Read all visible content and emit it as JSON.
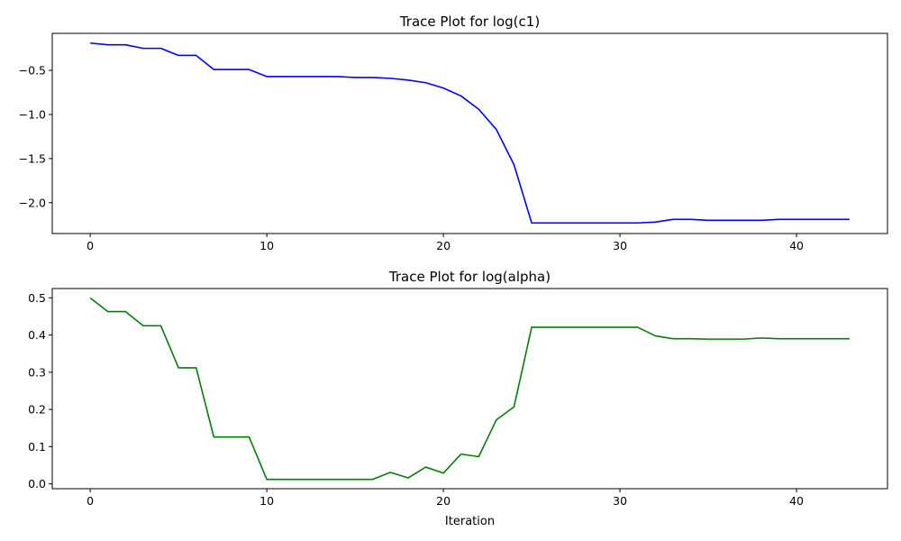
{
  "chart_data": [
    {
      "type": "line",
      "title": "Trace Plot for log(c1)",
      "xlabel": "",
      "ylabel": "",
      "xlim": [
        -2.15,
        45.15
      ],
      "ylim": [
        -2.35,
        -0.08
      ],
      "xticks": [
        0,
        10,
        20,
        30,
        40
      ],
      "xtick_labels": [
        "0",
        "10",
        "20",
        "30",
        "40"
      ],
      "yticks": [
        -2.0,
        -1.5,
        -1.0,
        -0.5
      ],
      "ytick_labels": [
        "−2.0",
        "−1.5",
        "−1.0",
        "−0.5"
      ],
      "grid": false,
      "color": "#0000ff",
      "x": [
        0,
        1,
        2,
        3,
        4,
        5,
        6,
        7,
        8,
        9,
        10,
        11,
        12,
        13,
        14,
        15,
        16,
        17,
        18,
        19,
        20,
        21,
        22,
        23,
        24,
        25,
        26,
        27,
        28,
        29,
        30,
        31,
        32,
        33,
        34,
        35,
        36,
        37,
        38,
        39,
        40,
        41,
        42,
        43
      ],
      "y": [
        -0.19,
        -0.21,
        -0.21,
        -0.25,
        -0.25,
        -0.33,
        -0.33,
        -0.49,
        -0.49,
        -0.49,
        -0.57,
        -0.57,
        -0.57,
        -0.57,
        -0.57,
        -0.58,
        -0.58,
        -0.59,
        -0.61,
        -0.64,
        -0.7,
        -0.79,
        -0.94,
        -1.17,
        -1.57,
        -2.23,
        -2.23,
        -2.23,
        -2.23,
        -2.23,
        -2.23,
        -2.23,
        -2.22,
        -2.19,
        -2.19,
        -2.2,
        -2.2,
        -2.2,
        -2.2,
        -2.19,
        -2.19,
        -2.19,
        -2.19,
        -2.19
      ]
    },
    {
      "type": "line",
      "title": "Trace Plot for log(alpha)",
      "xlabel": "Iteration",
      "ylabel": "",
      "xlim": [
        -2.15,
        45.15
      ],
      "ylim": [
        -0.013,
        0.525
      ],
      "xticks": [
        0,
        10,
        20,
        30,
        40
      ],
      "xtick_labels": [
        "0",
        "10",
        "20",
        "30",
        "40"
      ],
      "yticks": [
        0.0,
        0.1,
        0.2,
        0.3,
        0.4,
        0.5
      ],
      "ytick_labels": [
        "0.0",
        "0.1",
        "0.2",
        "0.3",
        "0.4",
        "0.5"
      ],
      "grid": false,
      "color": "#008000",
      "x": [
        0,
        1,
        2,
        3,
        4,
        5,
        6,
        7,
        8,
        9,
        10,
        11,
        12,
        13,
        14,
        15,
        16,
        17,
        18,
        19,
        20,
        21,
        22,
        23,
        24,
        25,
        26,
        27,
        28,
        29,
        30,
        31,
        32,
        33,
        34,
        35,
        36,
        37,
        38,
        39,
        40,
        41,
        42,
        43
      ],
      "y": [
        0.5,
        0.463,
        0.463,
        0.425,
        0.425,
        0.312,
        0.312,
        0.126,
        0.126,
        0.126,
        0.012,
        0.012,
        0.012,
        0.012,
        0.012,
        0.012,
        0.012,
        0.031,
        0.016,
        0.045,
        0.029,
        0.08,
        0.073,
        0.172,
        0.207,
        0.421,
        0.421,
        0.421,
        0.421,
        0.421,
        0.421,
        0.421,
        0.398,
        0.39,
        0.39,
        0.389,
        0.389,
        0.389,
        0.392,
        0.39,
        0.39,
        0.39,
        0.39,
        0.39
      ]
    }
  ]
}
